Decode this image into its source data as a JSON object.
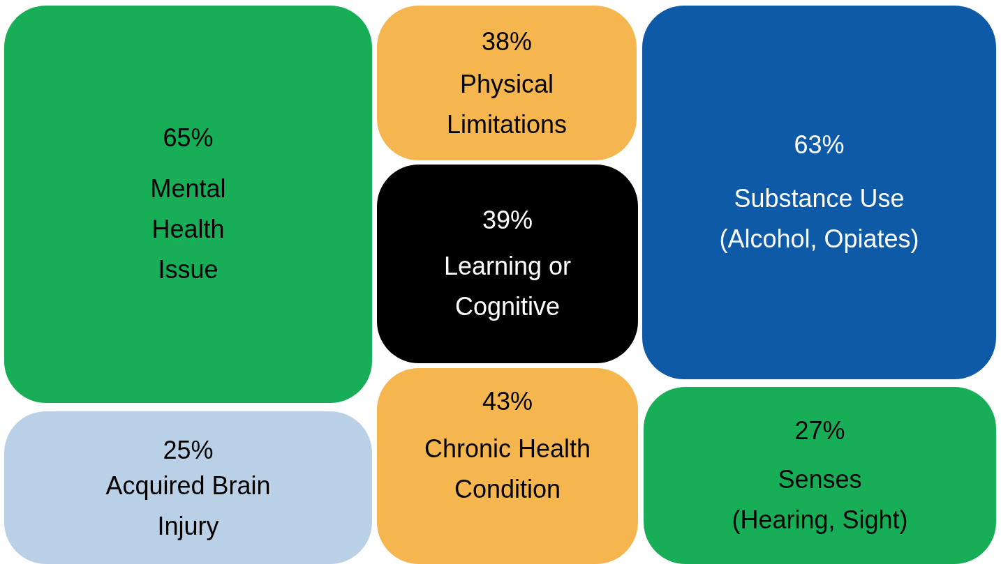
{
  "chart_data": {
    "type": "other",
    "categories": [
      "Mental Health Issue",
      "Physical Limitations",
      "Learning or Cognitive",
      "Chronic Health Condition",
      "Substance Use (Alcohol, Opiates)",
      "Acquired Brain Injury",
      "Senses (Hearing, Sight)"
    ],
    "values": [
      65,
      38,
      39,
      43,
      63,
      25,
      27
    ],
    "value_labels": [
      "65%",
      "38%",
      "39%",
      "43%",
      "63%",
      "25%",
      "27%"
    ],
    "colors": [
      "#17ae57",
      "#f5b54f",
      "#000000",
      "#f5b54f",
      "#0e5aa7",
      "#bad0e7",
      "#17ae57"
    ]
  }
}
